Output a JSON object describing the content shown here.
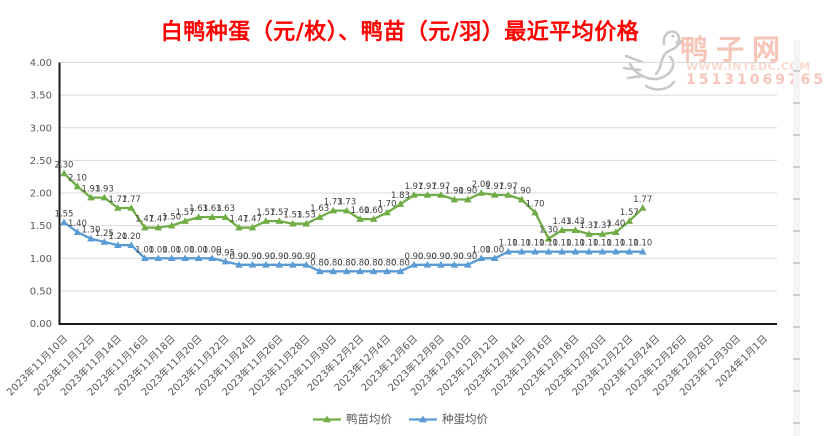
{
  "title": "白鸭种蛋（元/枚）、鸭苗（元/羽）最近平均价格",
  "watermark": {
    "site_name": "鸭子网",
    "url": "WWW.INTEDC.COM",
    "phone": "15131069765"
  },
  "colors": {
    "title": "#FE0000",
    "duckling_series": "#70AD47",
    "egg_series": "#5B9BD5",
    "gridline": "#D9D9D9",
    "axis_line": "#1A1A1A",
    "axis_label": "#595959",
    "data_label": "#404040",
    "watermark_pink": "#EE967D",
    "watermark_gray": "#C9C9C9"
  },
  "chart_data": {
    "type": "line",
    "title": "白鸭种蛋（元/枚）、鸭苗（元/羽）最近平均价格",
    "ylim": [
      0.0,
      4.0
    ],
    "grid": true,
    "legend_position": "bottom",
    "data_labels": true,
    "y_tick_labels": [
      "4.00",
      "3.50",
      "3.00",
      "2.50",
      "2.00",
      "1.50",
      "1.00",
      "0.50",
      "0.00"
    ],
    "x_tick_labels": [
      "2023年11月10日",
      "2023年11月12日",
      "2023年11月14日",
      "2023年11月16日",
      "2023年11月18日",
      "2023年11月20日",
      "2023年11月22日",
      "2023年11月24日",
      "2023年11月26日",
      "2023年11月28日",
      "2023年11月30日",
      "2023年12月2日",
      "2023年12月4日",
      "2023年12月6日",
      "2023年12月8日",
      "2023年12月10日",
      "2023年12月12日",
      "2023年12月14日",
      "2023年12月16日",
      "2023年12月18日",
      "2023年12月20日",
      "2023年12月22日",
      "2023年12月24日",
      "2023年12月26日",
      "2023年12月28日",
      "2023年12月30日",
      "2024年1月1日"
    ],
    "x": [
      "2023年11月10日",
      "2023年11月11日",
      "2023年11月12日",
      "2023年11月13日",
      "2023年11月14日",
      "2023年11月15日",
      "2023年11月16日",
      "2023年11月17日",
      "2023年11月18日",
      "2023年11月19日",
      "2023年11月20日",
      "2023年11月21日",
      "2023年11月22日",
      "2023年11月23日",
      "2023年11月24日",
      "2023年11月25日",
      "2023年11月26日",
      "2023年11月27日",
      "2023年11月28日",
      "2023年11月29日",
      "2023年11月30日",
      "2023年12月1日",
      "2023年12月2日",
      "2023年12月3日",
      "2023年12月4日",
      "2023年12月5日",
      "2023年12月6日",
      "2023年12月7日",
      "2023年12月8日",
      "2023年12月9日",
      "2023年12月10日",
      "2023年12月11日",
      "2023年12月12日",
      "2023年12月13日",
      "2023年12月14日",
      "2023年12月15日",
      "2023年12月16日",
      "2023年12月17日",
      "2023年12月18日",
      "2023年12月19日",
      "2023年12月20日",
      "2023年12月21日",
      "2023年12月22日",
      "2023年12月23日"
    ],
    "series": [
      {
        "name": "鸭苗均价",
        "color": "#70AD47",
        "marker": "triangle",
        "values": [
          2.3,
          2.1,
          1.93,
          1.93,
          1.77,
          1.77,
          1.47,
          1.47,
          1.5,
          1.57,
          1.63,
          1.63,
          1.63,
          1.47,
          1.47,
          1.57,
          1.57,
          1.53,
          1.53,
          1.63,
          1.73,
          1.73,
          1.6,
          1.6,
          1.7,
          1.83,
          1.97,
          1.97,
          1.97,
          1.9,
          1.9,
          2.0,
          1.97,
          1.97,
          1.9,
          1.7,
          1.3,
          1.43,
          1.43,
          1.37,
          1.37,
          1.4,
          1.57,
          1.77
        ]
      },
      {
        "name": "种蛋均价",
        "color": "#5B9BD5",
        "marker": "triangle",
        "values": [
          1.55,
          1.4,
          1.3,
          1.25,
          1.2,
          1.2,
          1.0,
          1.0,
          1.0,
          1.0,
          1.0,
          1.0,
          0.95,
          0.9,
          0.9,
          0.9,
          0.9,
          0.9,
          0.9,
          0.8,
          0.8,
          0.8,
          0.8,
          0.8,
          0.8,
          0.8,
          0.9,
          0.9,
          0.9,
          0.9,
          0.9,
          1.0,
          1.0,
          1.1,
          1.1,
          1.1,
          1.1,
          1.1,
          1.1,
          1.1,
          1.1,
          1.1,
          1.1,
          1.1
        ]
      }
    ]
  }
}
